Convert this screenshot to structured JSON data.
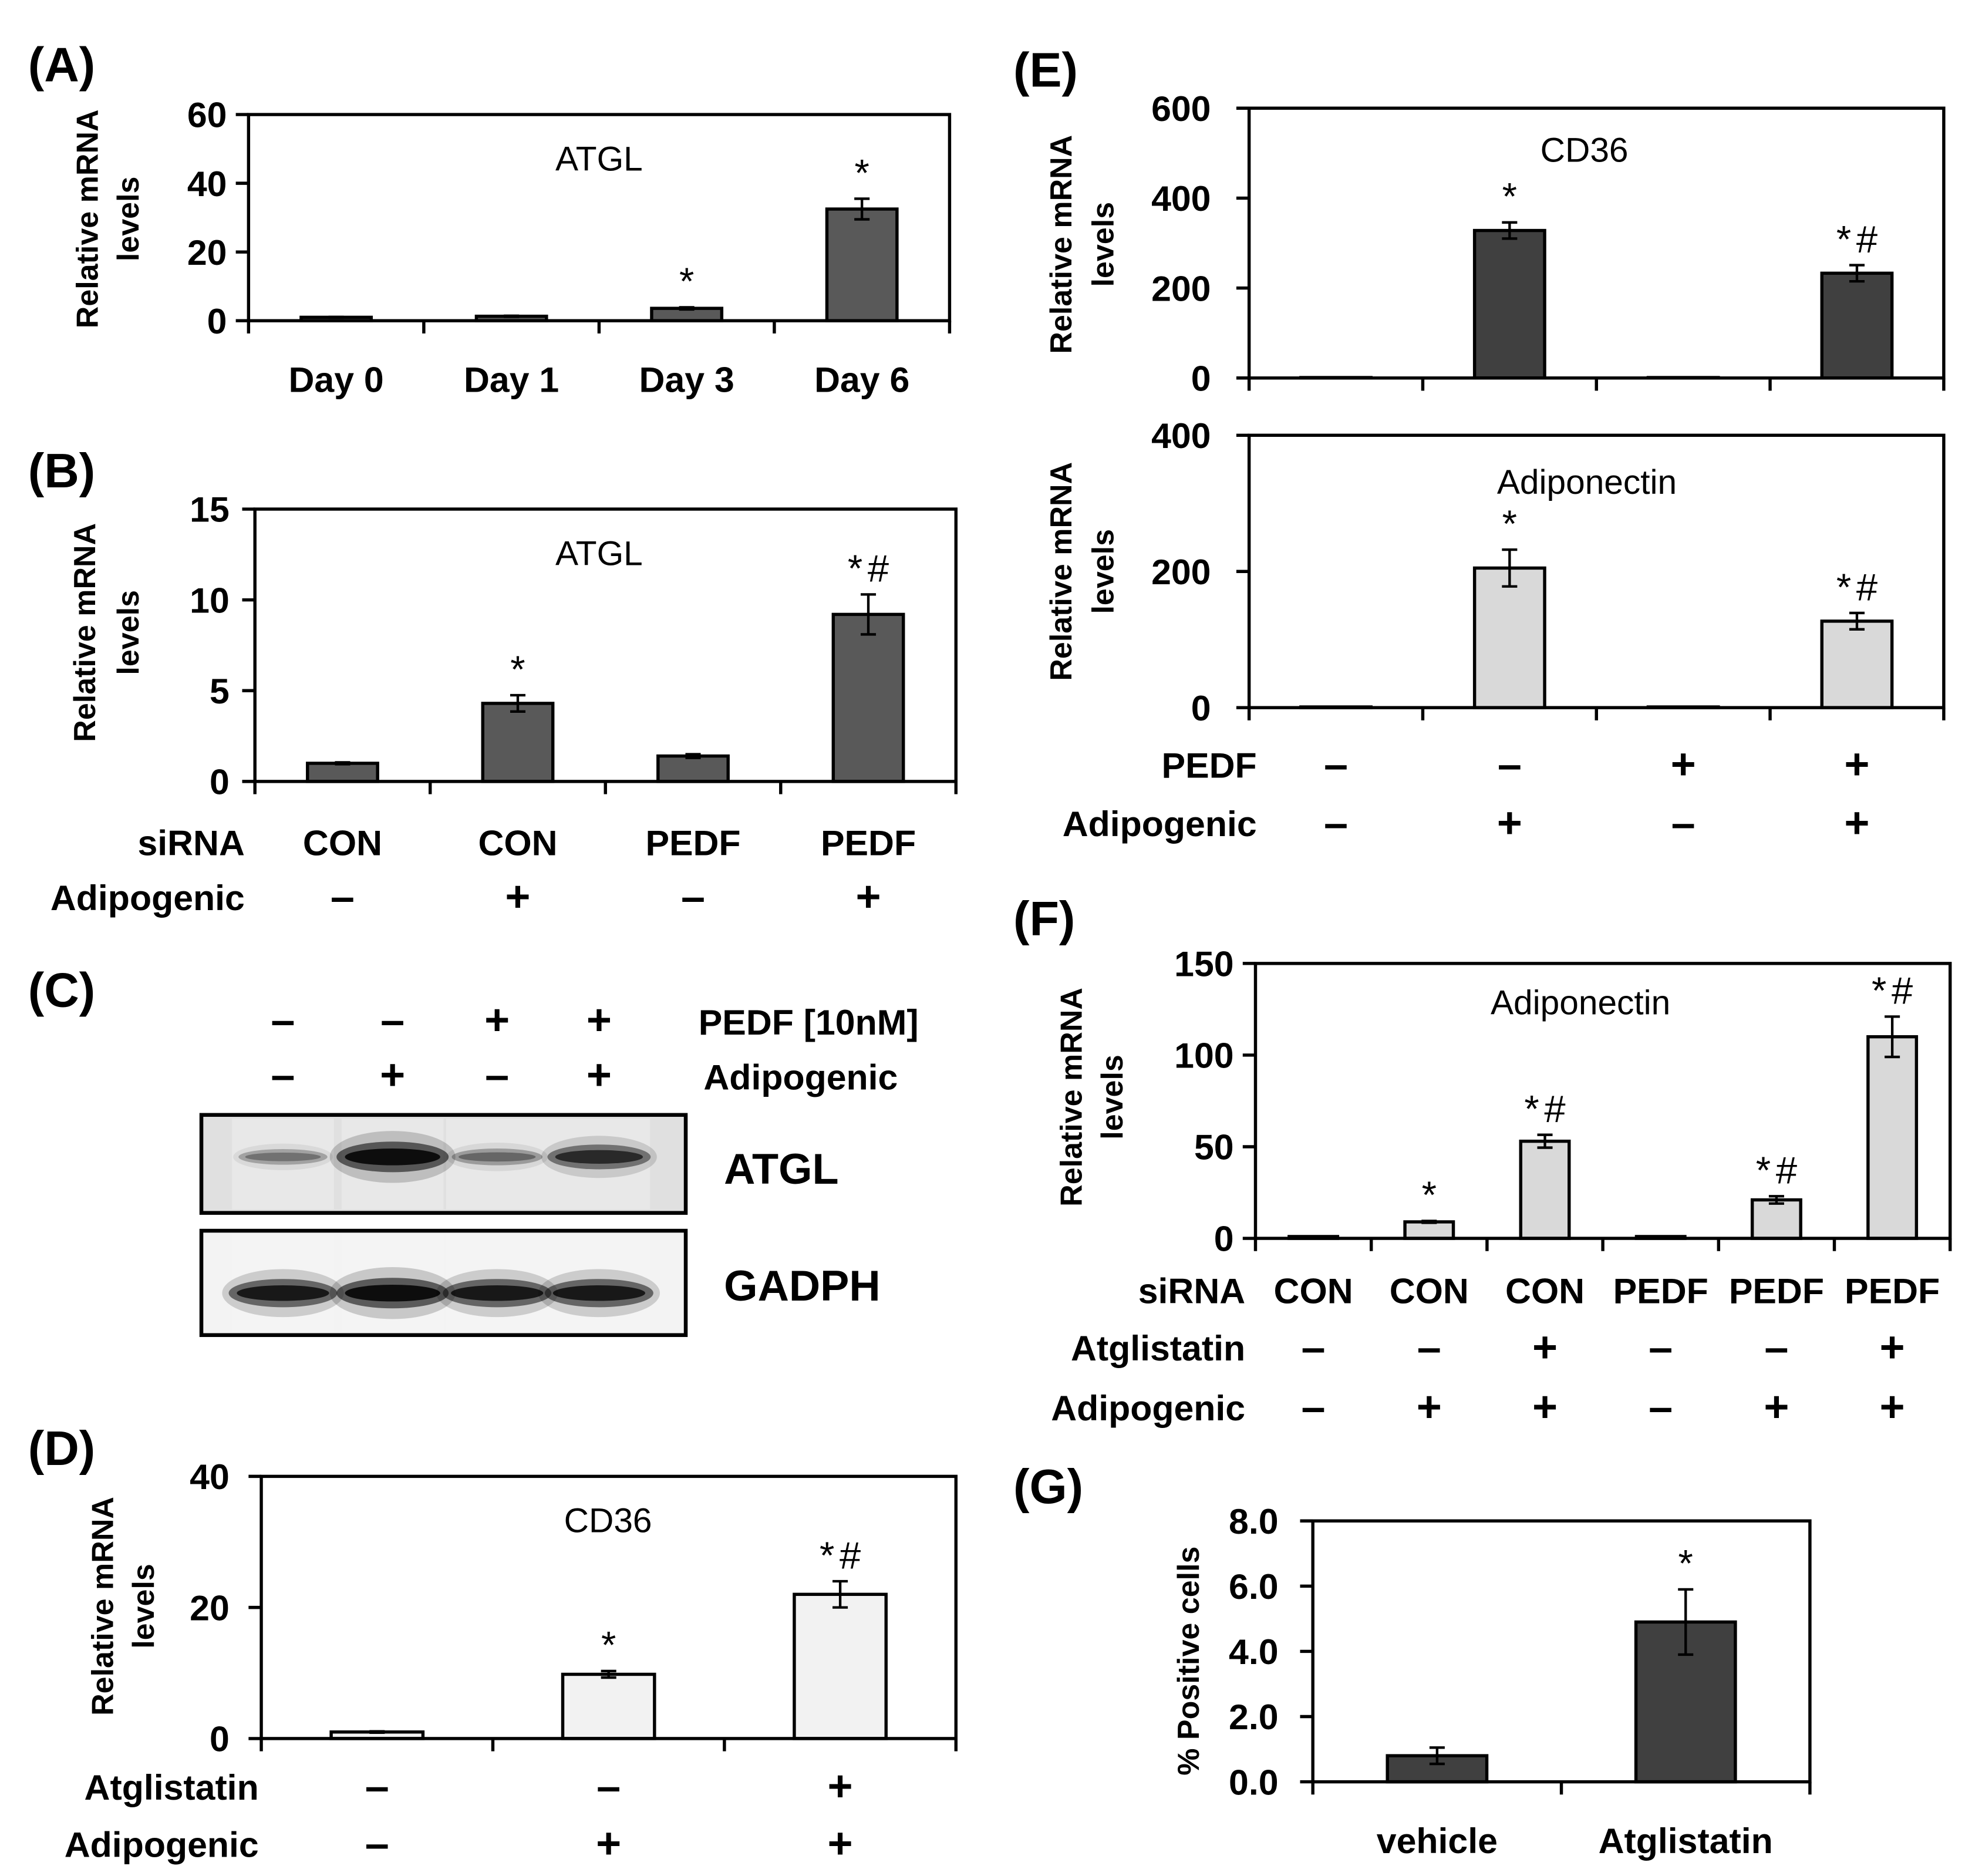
{
  "panel_labels": {
    "A": "(A)",
    "B": "(B)",
    "C": "(C)",
    "D": "(D)",
    "E": "(E)",
    "F": "(F)",
    "G": "(G)"
  },
  "blot": {
    "treatment_rows": [
      {
        "label": "PEDF [10nM]",
        "values": [
          "–",
          "–",
          "+",
          "+"
        ]
      },
      {
        "label": "Adipogenic",
        "values": [
          "–",
          "+",
          "–",
          "+"
        ]
      }
    ],
    "blots": [
      {
        "label": "ATGL",
        "band_intensity": [
          0.35,
          1.0,
          0.4,
          0.75
        ]
      },
      {
        "label": "GADPH",
        "band_intensity": [
          0.9,
          1.0,
          0.9,
          0.9
        ]
      }
    ]
  },
  "chart_data": [
    {
      "type": "bar",
      "title": "ATGL",
      "ylabel_lines": [
        "Relative mRNA",
        "levels"
      ],
      "ylim": [
        0,
        60
      ],
      "yticks": [
        "0",
        "20",
        "40",
        "60"
      ],
      "categories": [
        "Day 0",
        "Day 1",
        "Day 3",
        "Day 6"
      ],
      "values": [
        1.0,
        1.3,
        3.6,
        32.5
      ],
      "errors": [
        0.1,
        0.15,
        0.3,
        3.0
      ],
      "annotations": [
        "",
        "",
        "*",
        "*"
      ],
      "bar_color": "#595959"
    },
    {
      "type": "bar",
      "title": "ATGL",
      "ylabel_lines": [
        "Relative mRNA",
        "levels"
      ],
      "ylim": [
        0,
        15
      ],
      "yticks": [
        "0",
        "5",
        "10",
        "15"
      ],
      "condition_rows": [
        {
          "label": "siRNA",
          "values": [
            "CON",
            "CON",
            "PEDF",
            "PEDF"
          ]
        },
        {
          "label": "Adipogenic",
          "values": [
            "–",
            "+",
            "–",
            "+"
          ]
        }
      ],
      "values": [
        1.0,
        4.3,
        1.4,
        9.2
      ],
      "errors": [
        0.05,
        0.45,
        0.1,
        1.1
      ],
      "annotations": [
        "",
        "*",
        "",
        "*#"
      ],
      "bar_color": "#595959"
    },
    {
      "type": "bar",
      "title": "CD36",
      "ylabel_lines": [
        "Relative mRNA",
        "levels"
      ],
      "ylim": [
        0,
        40
      ],
      "yticks": [
        "0",
        "20",
        "40"
      ],
      "condition_rows": [
        {
          "label": "Atglistatin",
          "values": [
            "–",
            "–",
            "+"
          ]
        },
        {
          "label": "Adipogenic",
          "values": [
            "–",
            "+",
            "+"
          ]
        }
      ],
      "values": [
        1.0,
        9.8,
        22.0
      ],
      "errors": [
        0.1,
        0.5,
        2.0
      ],
      "annotations": [
        "",
        "*",
        "*#"
      ],
      "bar_color": "#f2f2f2"
    },
    {
      "type": "bar",
      "title": "CD36",
      "ylabel_lines": [
        "Relative mRNA",
        "levels"
      ],
      "ylim": [
        0,
        600
      ],
      "yticks": [
        "0",
        "200",
        "400",
        "600"
      ],
      "values": [
        1,
        328,
        1,
        233
      ],
      "errors": [
        0,
        18,
        0,
        18
      ],
      "annotations": [
        "",
        "*",
        "",
        "*#"
      ],
      "bar_color": "#404040"
    },
    {
      "type": "bar",
      "title": "Adiponectin",
      "ylabel_lines": [
        "Relative mRNA",
        "levels"
      ],
      "ylim": [
        0,
        400
      ],
      "yticks": [
        "0",
        "200",
        "400"
      ],
      "condition_rows": [
        {
          "label": "PEDF",
          "values": [
            "–",
            "–",
            "+",
            "+"
          ]
        },
        {
          "label": "Adipogenic",
          "values": [
            "–",
            "+",
            "–",
            "+"
          ]
        }
      ],
      "values": [
        1,
        205,
        1,
        127
      ],
      "errors": [
        0,
        27,
        0,
        12
      ],
      "annotations": [
        "",
        "*",
        "",
        "*#"
      ],
      "bar_color": "#d9d9d9"
    },
    {
      "type": "bar",
      "title": "Adiponectin",
      "ylabel_lines": [
        "Relative mRNA",
        "levels"
      ],
      "ylim": [
        0,
        150
      ],
      "yticks": [
        "0",
        "50",
        "100",
        "150"
      ],
      "condition_rows": [
        {
          "label": "siRNA",
          "values": [
            "CON",
            "CON",
            "CON",
            "PEDF",
            "PEDF",
            "PEDF"
          ]
        },
        {
          "label": "Atglistatin",
          "values": [
            "–",
            "–",
            "+",
            "–",
            "–",
            "+"
          ]
        },
        {
          "label": "Adipogenic",
          "values": [
            "–",
            "+",
            "+",
            "–",
            "+",
            "+"
          ]
        }
      ],
      "values": [
        1,
        9,
        53,
        1,
        21,
        110
      ],
      "errors": [
        0,
        0.5,
        3.5,
        0,
        2,
        11
      ],
      "annotations": [
        "",
        "*",
        "*#",
        "",
        "*#",
        "*#"
      ],
      "bar_color": "#d9d9d9"
    },
    {
      "type": "bar",
      "ylabel_lines": [
        "% Positive cells"
      ],
      "ylim": [
        0,
        8
      ],
      "yticks": [
        "0.0",
        "2.0",
        "4.0",
        "6.0",
        "8.0"
      ],
      "categories": [
        "vehicle",
        "Atglistatin"
      ],
      "values": [
        0.8,
        4.9
      ],
      "errors": [
        0.25,
        1.0
      ],
      "annotations": [
        "",
        "*"
      ],
      "bar_color": "#404040"
    }
  ]
}
